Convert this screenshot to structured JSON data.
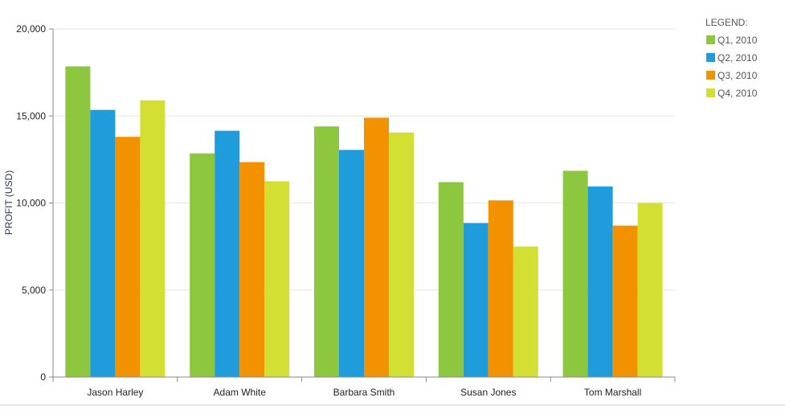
{
  "chart_data": {
    "type": "bar",
    "title": "",
    "xlabel": "",
    "ylabel": "PROFIT (USD)",
    "ylim": [
      0,
      20000
    ],
    "yticks": [
      0,
      5000,
      10000,
      15000,
      20000
    ],
    "ytick_labels": [
      "0",
      "5,000",
      "10,000",
      "15,000",
      "20,000"
    ],
    "grid": true,
    "categories": [
      "Jason Harley",
      "Adam White",
      "Barbara Smith",
      "Susan Jones",
      "Tom Marshall"
    ],
    "legend": {
      "title": "LEGEND:",
      "placement": "right"
    },
    "series": [
      {
        "name": "Q1, 2010",
        "color": "#8dc63f",
        "values": [
          17850,
          12850,
          14400,
          11200,
          11850
        ]
      },
      {
        "name": "Q2, 2010",
        "color": "#1e9cdc",
        "values": [
          15350,
          14150,
          13050,
          8850,
          10950
        ]
      },
      {
        "name": "Q3, 2010",
        "color": "#f39200",
        "values": [
          13800,
          12350,
          14900,
          10150,
          8700
        ]
      },
      {
        "name": "Q4, 2010",
        "color": "#d4df33",
        "values": [
          15900,
          11250,
          14050,
          7500,
          10000
        ]
      }
    ]
  }
}
